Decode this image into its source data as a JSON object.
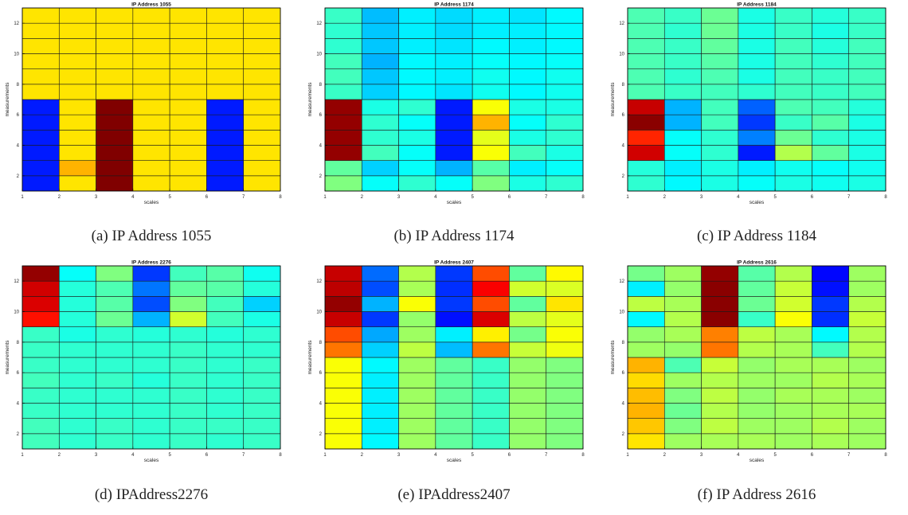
{
  "colormap": "jet",
  "chart_data": [
    {
      "type": "heatmap",
      "title": "IP Address 1055",
      "xlabel": "scales",
      "ylabel": "measurements",
      "caption": "(a) IP Address 1055",
      "xlim": [
        1,
        8
      ],
      "ylim": [
        1,
        13
      ],
      "xticks": [
        1,
        2,
        3,
        4,
        5,
        6,
        7,
        8
      ],
      "yticks": [
        2,
        4,
        6,
        8,
        10,
        12
      ],
      "grid": true,
      "values": [
        [
          0.15,
          0.65,
          1.0,
          0.65,
          0.65,
          0.15,
          0.65
        ],
        [
          0.15,
          0.7,
          1.0,
          0.65,
          0.65,
          0.15,
          0.65
        ],
        [
          0.15,
          0.65,
          1.0,
          0.65,
          0.65,
          0.15,
          0.65
        ],
        [
          0.15,
          0.65,
          1.0,
          0.65,
          0.65,
          0.15,
          0.65
        ],
        [
          0.15,
          0.65,
          1.0,
          0.65,
          0.65,
          0.15,
          0.65
        ],
        [
          0.15,
          0.65,
          1.0,
          0.65,
          0.65,
          0.15,
          0.65
        ],
        [
          0.65,
          0.65,
          0.65,
          0.65,
          0.65,
          0.65,
          0.65
        ],
        [
          0.65,
          0.65,
          0.65,
          0.65,
          0.65,
          0.65,
          0.65
        ],
        [
          0.65,
          0.65,
          0.65,
          0.65,
          0.65,
          0.65,
          0.65
        ],
        [
          0.65,
          0.65,
          0.65,
          0.65,
          0.65,
          0.65,
          0.65
        ],
        [
          0.65,
          0.65,
          0.65,
          0.65,
          0.65,
          0.65,
          0.65
        ],
        [
          0.65,
          0.65,
          0.65,
          0.65,
          0.65,
          0.65,
          0.65
        ]
      ]
    },
    {
      "type": "heatmap",
      "title": "IP Address 1174",
      "xlabel": "scales",
      "ylabel": "measurements",
      "caption": "(b) IP Address 1174",
      "xlim": [
        1,
        8
      ],
      "ylim": [
        1,
        13
      ],
      "xticks": [
        1,
        2,
        3,
        4,
        5,
        6,
        7,
        8
      ],
      "yticks": [
        2,
        4,
        6,
        8,
        10,
        12
      ],
      "grid": true,
      "values": [
        [
          0.5,
          0.38,
          0.42,
          0.38,
          0.5,
          0.4,
          0.42
        ],
        [
          0.47,
          0.33,
          0.38,
          0.3,
          0.46,
          0.36,
          0.38
        ],
        [
          0.98,
          0.44,
          0.38,
          0.15,
          0.62,
          0.44,
          0.4
        ],
        [
          0.98,
          0.42,
          0.4,
          0.15,
          0.6,
          0.4,
          0.42
        ],
        [
          0.98,
          0.42,
          0.38,
          0.15,
          0.7,
          0.38,
          0.42
        ],
        [
          0.98,
          0.4,
          0.42,
          0.15,
          0.62,
          0.4,
          0.4
        ],
        [
          0.43,
          0.33,
          0.37,
          0.35,
          0.39,
          0.37,
          0.39
        ],
        [
          0.44,
          0.32,
          0.37,
          0.36,
          0.39,
          0.37,
          0.39
        ],
        [
          0.44,
          0.3,
          0.37,
          0.36,
          0.38,
          0.37,
          0.38
        ],
        [
          0.42,
          0.32,
          0.36,
          0.35,
          0.37,
          0.36,
          0.37
        ],
        [
          0.42,
          0.32,
          0.36,
          0.34,
          0.36,
          0.36,
          0.37
        ],
        [
          0.43,
          0.31,
          0.36,
          0.34,
          0.36,
          0.35,
          0.37
        ]
      ]
    },
    {
      "type": "heatmap",
      "title": "IP Address 1184",
      "xlabel": "scales",
      "ylabel": "measurements",
      "caption": "(c) IP Address 1184",
      "xlim": [
        1,
        8
      ],
      "ylim": [
        1,
        13
      ],
      "xticks": [
        1,
        2,
        3,
        4,
        5,
        6,
        7,
        8
      ],
      "yticks": [
        2,
        4,
        6,
        8,
        10,
        12
      ],
      "grid": true,
      "values": [
        [
          0.42,
          0.37,
          0.4,
          0.38,
          0.4,
          0.39,
          0.4
        ],
        [
          0.41,
          0.36,
          0.4,
          0.36,
          0.39,
          0.38,
          0.39
        ],
        [
          0.92,
          0.38,
          0.42,
          0.15,
          0.55,
          0.47,
          0.4
        ],
        [
          0.84,
          0.38,
          0.42,
          0.25,
          0.48,
          0.42,
          0.4
        ],
        [
          0.99,
          0.3,
          0.44,
          0.18,
          0.43,
          0.46,
          0.4
        ],
        [
          0.93,
          0.3,
          0.44,
          0.22,
          0.45,
          0.44,
          0.41
        ],
        [
          0.45,
          0.43,
          0.44,
          0.42,
          0.44,
          0.43,
          0.44
        ],
        [
          0.45,
          0.42,
          0.45,
          0.4,
          0.44,
          0.43,
          0.44
        ],
        [
          0.45,
          0.43,
          0.46,
          0.4,
          0.44,
          0.42,
          0.44
        ],
        [
          0.45,
          0.43,
          0.47,
          0.4,
          0.44,
          0.41,
          0.44
        ],
        [
          0.45,
          0.42,
          0.48,
          0.4,
          0.43,
          0.4,
          0.43
        ],
        [
          0.45,
          0.43,
          0.48,
          0.4,
          0.43,
          0.41,
          0.43
        ]
      ]
    },
    {
      "type": "heatmap",
      "title": "IP Address 2276",
      "xlabel": "scales",
      "ylabel": "measurements",
      "caption": "(d) IPAddress2276",
      "xlim": [
        1,
        8
      ],
      "ylim": [
        1,
        13
      ],
      "xticks": [
        1,
        2,
        3,
        4,
        5,
        6,
        7,
        8
      ],
      "yticks": [
        2,
        4,
        6,
        8,
        10,
        12
      ],
      "grid": true,
      "values": [
        [
          0.44,
          0.42,
          0.43,
          0.42,
          0.43,
          0.42,
          0.43
        ],
        [
          0.44,
          0.42,
          0.43,
          0.42,
          0.43,
          0.43,
          0.43
        ],
        [
          0.43,
          0.42,
          0.42,
          0.42,
          0.43,
          0.42,
          0.43
        ],
        [
          0.43,
          0.42,
          0.42,
          0.42,
          0.43,
          0.42,
          0.43
        ],
        [
          0.44,
          0.42,
          0.43,
          0.41,
          0.43,
          0.42,
          0.43
        ],
        [
          0.43,
          0.42,
          0.42,
          0.42,
          0.43,
          0.42,
          0.43
        ],
        [
          0.43,
          0.42,
          0.42,
          0.42,
          0.43,
          0.42,
          0.42
        ],
        [
          0.43,
          0.4,
          0.42,
          0.41,
          0.42,
          0.41,
          0.42
        ],
        [
          0.86,
          0.41,
          0.48,
          0.3,
          0.58,
          0.44,
          0.4
        ],
        [
          0.91,
          0.41,
          0.46,
          0.2,
          0.5,
          0.44,
          0.33
        ],
        [
          0.92,
          0.41,
          0.45,
          0.24,
          0.47,
          0.46,
          0.41
        ],
        [
          0.98,
          0.38,
          0.5,
          0.18,
          0.44,
          0.46,
          0.39
        ]
      ]
    },
    {
      "type": "heatmap",
      "title": "IP Address 2407",
      "xlabel": "scales",
      "ylabel": "measurements",
      "caption": "(e) IPAddress2407",
      "xlim": [
        1,
        8
      ],
      "ylim": [
        1,
        13
      ],
      "xticks": [
        1,
        2,
        3,
        4,
        5,
        6,
        7,
        8
      ],
      "yticks": [
        2,
        4,
        6,
        8,
        10,
        12
      ],
      "grid": true,
      "values": [
        [
          0.62,
          0.37,
          0.53,
          0.47,
          0.43,
          0.52,
          0.5
        ],
        [
          0.62,
          0.36,
          0.53,
          0.47,
          0.43,
          0.52,
          0.5
        ],
        [
          0.62,
          0.36,
          0.53,
          0.47,
          0.43,
          0.52,
          0.5
        ],
        [
          0.62,
          0.36,
          0.53,
          0.47,
          0.43,
          0.52,
          0.5
        ],
        [
          0.62,
          0.36,
          0.53,
          0.47,
          0.43,
          0.52,
          0.5
        ],
        [
          0.62,
          0.37,
          0.53,
          0.47,
          0.43,
          0.52,
          0.5
        ],
        [
          0.76,
          0.33,
          0.56,
          0.31,
          0.76,
          0.57,
          0.61
        ],
        [
          0.8,
          0.29,
          0.53,
          0.36,
          0.64,
          0.49,
          0.62
        ],
        [
          0.93,
          0.18,
          0.52,
          0.14,
          0.91,
          0.56,
          0.6
        ],
        [
          0.98,
          0.3,
          0.62,
          0.18,
          0.8,
          0.47,
          0.65
        ],
        [
          0.94,
          0.2,
          0.54,
          0.17,
          0.88,
          0.58,
          0.59
        ],
        [
          0.93,
          0.23,
          0.55,
          0.18,
          0.8,
          0.47,
          0.63
        ]
      ]
    },
    {
      "type": "heatmap",
      "title": "IP Address 2616",
      "xlabel": "scales",
      "ylabel": "measurements",
      "caption": "(f) IP Address 2616",
      "xlim": [
        1,
        8
      ],
      "ylim": [
        1,
        13
      ],
      "xticks": [
        1,
        2,
        3,
        4,
        5,
        6,
        7,
        8
      ],
      "yticks": [
        2,
        4,
        6,
        8,
        10,
        12
      ],
      "grid": true,
      "values": [
        [
          0.65,
          0.53,
          0.54,
          0.54,
          0.53,
          0.54,
          0.53
        ],
        [
          0.68,
          0.5,
          0.56,
          0.53,
          0.53,
          0.55,
          0.53
        ],
        [
          0.7,
          0.48,
          0.55,
          0.52,
          0.53,
          0.54,
          0.54
        ],
        [
          0.69,
          0.5,
          0.56,
          0.52,
          0.54,
          0.54,
          0.53
        ],
        [
          0.66,
          0.53,
          0.55,
          0.53,
          0.53,
          0.55,
          0.54
        ],
        [
          0.7,
          0.45,
          0.57,
          0.52,
          0.54,
          0.54,
          0.53
        ],
        [
          0.53,
          0.52,
          0.76,
          0.55,
          0.54,
          0.44,
          0.55
        ],
        [
          0.52,
          0.54,
          0.75,
          0.56,
          0.54,
          0.37,
          0.55
        ],
        [
          0.37,
          0.55,
          0.99,
          0.43,
          0.62,
          0.17,
          0.57
        ],
        [
          0.56,
          0.54,
          0.99,
          0.48,
          0.58,
          0.18,
          0.55
        ],
        [
          0.36,
          0.52,
          0.99,
          0.47,
          0.57,
          0.14,
          0.53
        ],
        [
          0.49,
          0.53,
          0.98,
          0.46,
          0.55,
          0.13,
          0.53
        ]
      ]
    }
  ]
}
